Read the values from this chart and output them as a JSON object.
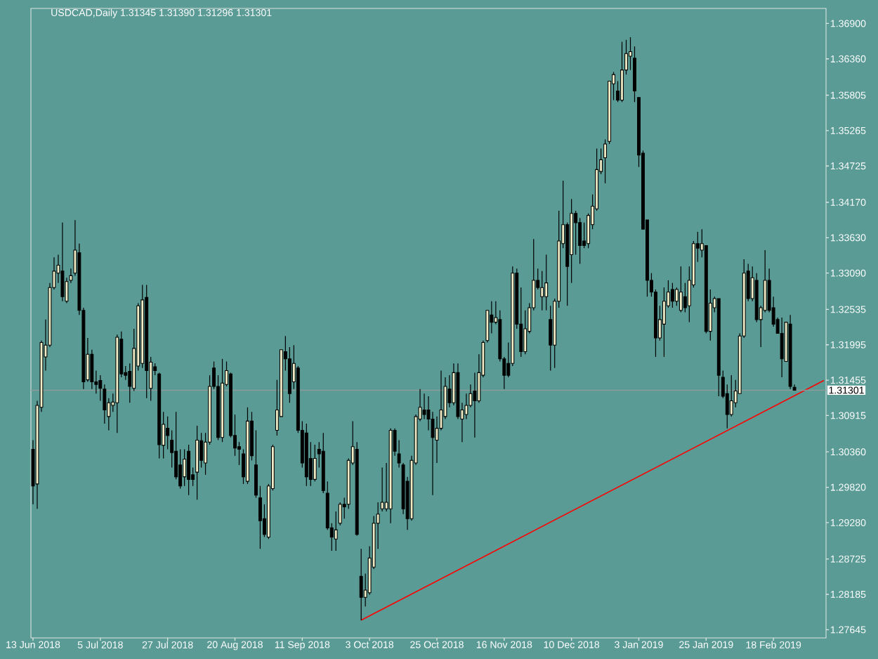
{
  "chart_data": {
    "type": "candlestick",
    "title": "USDCAD,Daily  1.31345 1.31390 1.31296 1.31301",
    "categories": [
      "13 Jun 2018",
      null,
      null,
      null,
      null,
      null,
      null,
      null,
      null,
      null,
      null,
      null,
      null,
      null,
      null,
      null,
      "5 Jul 2018",
      null,
      null,
      null,
      null,
      null,
      null,
      null,
      null,
      null,
      null,
      null,
      null,
      null,
      null,
      null,
      "27 Jul 2018",
      null,
      null,
      null,
      null,
      null,
      null,
      null,
      null,
      null,
      null,
      null,
      null,
      null,
      null,
      null,
      "20 Aug 2018",
      null,
      null,
      null,
      null,
      null,
      null,
      null,
      null,
      null,
      null,
      null,
      null,
      null,
      null,
      null,
      "11 Sep 2018",
      null,
      null,
      null,
      null,
      null,
      null,
      null,
      null,
      null,
      null,
      null,
      null,
      null,
      null,
      null,
      "3 Oct 2018",
      null,
      null,
      null,
      null,
      null,
      null,
      null,
      null,
      null,
      null,
      null,
      null,
      null,
      null,
      null,
      "25 Oct 2018",
      null,
      null,
      null,
      null,
      null,
      null,
      null,
      null,
      null,
      null,
      null,
      null,
      null,
      null,
      null,
      "16 Nov 2018",
      null,
      null,
      null,
      null,
      null,
      null,
      null,
      null,
      null,
      null,
      null,
      null,
      null,
      null,
      null,
      "10 Dec 2018",
      null,
      null,
      null,
      null,
      null,
      null,
      null,
      null,
      null,
      null,
      null,
      null,
      null,
      null,
      null,
      "3 Jan 2019",
      null,
      null,
      null,
      null,
      null,
      null,
      null,
      null,
      null,
      null,
      null,
      null,
      null,
      null,
      null,
      "25 Jan 2019",
      null,
      null,
      null,
      null,
      null,
      null,
      null,
      null,
      null,
      null,
      null,
      null,
      null,
      null,
      null,
      "18 Feb 2019",
      null,
      null,
      null,
      null,
      null,
      null,
      null,
      null,
      null,
      null,
      null,
      null
    ],
    "ohlc": [
      [
        1.304,
        1.3054,
        1.2956,
        1.2984
      ],
      [
        1.2987,
        1.3114,
        1.2949,
        1.3107
      ],
      [
        1.3104,
        1.3206,
        1.3097,
        1.3203
      ],
      [
        1.3181,
        1.3238,
        1.316,
        1.3199
      ],
      [
        1.3199,
        1.3294,
        1.3196,
        1.3287
      ],
      [
        1.3287,
        1.3333,
        1.3284,
        1.3312
      ],
      [
        1.3309,
        1.3337,
        1.3294,
        1.3321
      ],
      [
        1.3312,
        1.3386,
        1.3266,
        1.3273
      ],
      [
        1.3266,
        1.3302,
        1.3263,
        1.3296
      ],
      [
        1.3298,
        1.3316,
        1.3294,
        1.3305
      ],
      [
        1.3309,
        1.339,
        1.3305,
        1.3344
      ],
      [
        1.334,
        1.3354,
        1.3245,
        1.3252
      ],
      [
        1.3252,
        1.3256,
        1.3132,
        1.3143
      ],
      [
        1.3146,
        1.321,
        1.3143,
        1.3185
      ],
      [
        1.3185,
        1.3192,
        1.3132,
        1.3143
      ],
      [
        1.3143,
        1.316,
        1.3125,
        1.3139
      ],
      [
        1.3145,
        1.3153,
        1.3114,
        1.3133
      ],
      [
        1.3132,
        1.3139,
        1.3079,
        1.31
      ],
      [
        1.309,
        1.3118,
        1.3069,
        1.3111
      ],
      [
        1.3107,
        1.3125,
        1.3097,
        1.3112
      ],
      [
        1.3111,
        1.3215,
        1.3065,
        1.3211
      ],
      [
        1.3208,
        1.322,
        1.315,
        1.3155
      ],
      [
        1.3157,
        1.3167,
        1.3146,
        1.3153
      ],
      [
        1.3159,
        1.3171,
        1.3111,
        1.3136
      ],
      [
        1.3133,
        1.3224,
        1.3129,
        1.3194
      ],
      [
        1.3167,
        1.3263,
        1.316,
        1.3259
      ],
      [
        1.3171,
        1.3291,
        1.3164,
        1.3268
      ],
      [
        1.3272,
        1.3291,
        1.3118,
        1.316
      ],
      [
        1.3133,
        1.3181,
        1.3114,
        1.3173
      ],
      [
        1.3166,
        1.3171,
        1.3153,
        1.316
      ],
      [
        1.3155,
        1.3157,
        1.3026,
        1.3047
      ],
      [
        1.3046,
        1.3097,
        1.3026,
        1.3078
      ],
      [
        1.3072,
        1.309,
        1.304,
        1.3061
      ],
      [
        1.3054,
        1.3069,
        1.3012,
        1.3035
      ],
      [
        1.3037,
        1.3097,
        1.2994,
        1.2998
      ],
      [
        1.3016,
        1.304,
        1.298,
        1.2984
      ],
      [
        1.2998,
        1.304,
        1.2984,
        1.3025
      ],
      [
        1.3037,
        1.3047,
        1.297,
        1.2994
      ],
      [
        1.3001,
        1.3012,
        1.2984,
        1.2994
      ],
      [
        1.3005,
        1.3076,
        1.2963,
        1.3054
      ],
      [
        1.3053,
        1.3065,
        1.3012,
        1.3023
      ],
      [
        1.3019,
        1.3065,
        1.3001,
        1.3051
      ],
      [
        1.3051,
        1.3153,
        1.3047,
        1.3136
      ],
      [
        1.3164,
        1.3174,
        1.3132,
        1.3136
      ],
      [
        1.3136,
        1.3153,
        1.3054,
        1.3058
      ],
      [
        1.3058,
        1.3178,
        1.3051,
        1.3141
      ],
      [
        1.3139,
        1.3174,
        1.3136,
        1.316
      ],
      [
        1.3155,
        1.3157,
        1.3058,
        1.3061
      ],
      [
        1.3061,
        1.3093,
        1.303,
        1.3042
      ],
      [
        1.3044,
        1.3051,
        1.3016,
        1.304
      ],
      [
        1.3033,
        1.304,
        1.2987,
        1.2998
      ],
      [
        1.2991,
        1.3104,
        1.2987,
        1.3083
      ],
      [
        1.3083,
        1.3097,
        1.3023,
        1.303
      ],
      [
        1.3016,
        1.3069,
        1.2966,
        1.297
      ],
      [
        1.2966,
        1.2984,
        1.2888,
        1.2931
      ],
      [
        1.2934,
        1.2956,
        1.2906,
        1.291
      ],
      [
        1.2906,
        1.2987,
        1.2903,
        1.2984
      ],
      [
        1.298,
        1.3047,
        1.2977,
        1.3044
      ],
      [
        1.3069,
        1.3146,
        1.3061,
        1.31
      ],
      [
        1.309,
        1.3192,
        1.309,
        1.3192
      ],
      [
        1.3189,
        1.3213,
        1.316,
        1.3178
      ],
      [
        1.3178,
        1.3196,
        1.3111,
        1.3125
      ],
      [
        1.3143,
        1.3199,
        1.3132,
        1.3171
      ],
      [
        1.3164,
        1.3167,
        1.3065,
        1.3069
      ],
      [
        1.3069,
        1.3083,
        1.3012,
        1.3019
      ],
      [
        1.3065,
        1.3079,
        1.2984,
        1.2998
      ],
      [
        1.3026,
        1.3051,
        1.2984,
        1.2994
      ],
      [
        1.2994,
        1.3047,
        1.2991,
        1.3026
      ],
      [
        1.304,
        1.3051,
        1.3012,
        1.3033
      ],
      [
        1.3037,
        1.3065,
        1.2973,
        1.2977
      ],
      [
        1.2973,
        1.2991,
        1.2917,
        1.292
      ],
      [
        1.292,
        1.2927,
        1.2885,
        1.2906
      ],
      [
        1.2903,
        1.2945,
        1.2885,
        1.2917
      ],
      [
        1.2927,
        1.2959,
        1.2924,
        1.2956
      ],
      [
        1.2956,
        1.2966,
        1.2934,
        1.2952
      ],
      [
        1.2956,
        1.3026,
        1.2949,
        1.3023
      ],
      [
        1.3019,
        1.3083,
        1.3016,
        1.3044
      ],
      [
        1.304,
        1.3051,
        1.2908,
        1.291
      ],
      [
        1.2846,
        1.2888,
        1.2779,
        1.2814
      ],
      [
        1.2814,
        1.285,
        1.28,
        1.2825
      ],
      [
        1.2821,
        1.2892,
        1.2818,
        1.2874
      ],
      [
        1.286,
        1.2938,
        1.2857,
        1.2927
      ],
      [
        1.2927,
        1.2959,
        1.2888,
        1.2941
      ],
      [
        1.2949,
        1.3012,
        1.2945,
        1.2959
      ],
      [
        1.2949,
        1.3019,
        1.2945,
        1.2959
      ],
      [
        1.2949,
        1.3072,
        1.2927,
        1.3069
      ],
      [
        1.3069,
        1.3072,
        1.303,
        1.3037
      ],
      [
        1.3033,
        1.3054,
        1.3012,
        1.3019
      ],
      [
        1.3016,
        1.3019,
        1.2941,
        1.2949
      ],
      [
        1.2991,
        1.2998,
        1.2917,
        1.2934
      ],
      [
        1.2934,
        1.303,
        1.2931,
        1.3023
      ],
      [
        1.3019,
        1.3093,
        1.3016,
        1.309
      ],
      [
        1.3086,
        1.3132,
        1.3083,
        1.3104
      ],
      [
        1.31,
        1.3125,
        1.3086,
        1.3093
      ],
      [
        1.31,
        1.3121,
        1.3069,
        1.3086
      ],
      [
        1.3086,
        1.3097,
        1.297,
        1.3058
      ],
      [
        1.3054,
        1.309,
        1.3019,
        1.3072
      ],
      [
        1.3072,
        1.316,
        1.3069,
        1.31
      ],
      [
        1.309,
        1.315,
        1.3086,
        1.3136
      ],
      [
        1.3132,
        1.3153,
        1.3104,
        1.3111
      ],
      [
        1.3111,
        1.3171,
        1.3107,
        1.3157
      ],
      [
        1.3157,
        1.3171,
        1.3086,
        1.309
      ],
      [
        1.3086,
        1.3111,
        1.3051,
        1.31
      ],
      [
        1.3093,
        1.3125,
        1.3086,
        1.3107
      ],
      [
        1.3107,
        1.3139,
        1.3104,
        1.3125
      ],
      [
        1.3129,
        1.3157,
        1.3058,
        1.3114
      ],
      [
        1.3114,
        1.3185,
        1.3111,
        1.3157
      ],
      [
        1.3153,
        1.3206,
        1.315,
        1.3203
      ],
      [
        1.3206,
        1.3252,
        1.3203,
        1.3252
      ],
      [
        1.3245,
        1.3266,
        1.3217,
        1.3234
      ],
      [
        1.3234,
        1.3266,
        1.3231,
        1.3241
      ],
      [
        1.3238,
        1.3252,
        1.3174,
        1.3178
      ],
      [
        1.3178,
        1.3181,
        1.3132,
        1.3153
      ],
      [
        1.3171,
        1.3203,
        1.315,
        1.3153
      ],
      [
        1.3171,
        1.3319,
        1.3167,
        1.3309
      ],
      [
        1.3309,
        1.3316,
        1.3224,
        1.3231
      ],
      [
        1.3231,
        1.3287,
        1.3181,
        1.3189
      ],
      [
        1.3189,
        1.3252,
        1.3185,
        1.3224
      ],
      [
        1.322,
        1.3263,
        1.3217,
        1.3256
      ],
      [
        1.3256,
        1.3361,
        1.3252,
        1.3298
      ],
      [
        1.3298,
        1.3316,
        1.3284,
        1.3287
      ],
      [
        1.3273,
        1.3312,
        1.3252,
        1.3287
      ],
      [
        1.3273,
        1.3337,
        1.3252,
        1.3294
      ],
      [
        1.3238,
        1.3259,
        1.316,
        1.3199
      ],
      [
        1.3199,
        1.327,
        1.3164,
        1.3266
      ],
      [
        1.3266,
        1.3404,
        1.3256,
        1.3358
      ],
      [
        1.3354,
        1.345,
        1.3347,
        1.3383
      ],
      [
        1.3383,
        1.3386,
        1.3259,
        1.3319
      ],
      [
        1.3337,
        1.3422,
        1.3294,
        1.34
      ],
      [
        1.34,
        1.3404,
        1.3337,
        1.3386
      ],
      [
        1.3386,
        1.3393,
        1.3323,
        1.3351
      ],
      [
        1.3358,
        1.3386,
        1.3347,
        1.3351
      ],
      [
        1.3354,
        1.34,
        1.3347,
        1.3397
      ],
      [
        1.3383,
        1.3429,
        1.3376,
        1.3411
      ],
      [
        1.3407,
        1.3499,
        1.3404,
        1.3467
      ],
      [
        1.3464,
        1.3499,
        1.346,
        1.3482
      ],
      [
        1.3485,
        1.3513,
        1.3446,
        1.3506
      ],
      [
        1.351,
        1.3602,
        1.3506,
        1.3602
      ],
      [
        1.3598,
        1.3616,
        1.3573,
        1.3612
      ],
      [
        1.3587,
        1.3602,
        1.357,
        1.3573
      ],
      [
        1.3573,
        1.3662,
        1.357,
        1.3619
      ],
      [
        1.3619,
        1.3665,
        1.3612,
        1.3644
      ],
      [
        1.364,
        1.3669,
        1.3619,
        1.3647
      ],
      [
        1.3637,
        1.3655,
        1.357,
        1.3587
      ],
      [
        1.3577,
        1.3577,
        1.3471,
        1.3489
      ],
      [
        1.3492,
        1.3496,
        1.3376,
        1.3376
      ],
      [
        1.339,
        1.339,
        1.3273,
        1.3298
      ],
      [
        1.3298,
        1.3309,
        1.3273,
        1.328
      ],
      [
        1.328,
        1.3284,
        1.3181,
        1.321
      ],
      [
        1.321,
        1.3259,
        1.3206,
        1.3238
      ],
      [
        1.3231,
        1.3287,
        1.3181,
        1.3266
      ],
      [
        1.3259,
        1.3298,
        1.3256,
        1.328
      ],
      [
        1.3284,
        1.3294,
        1.3256,
        1.3266
      ],
      [
        1.3266,
        1.3287,
        1.3259,
        1.3284
      ],
      [
        1.3252,
        1.3319,
        1.3249,
        1.328
      ],
      [
        1.3273,
        1.3294,
        1.3249,
        1.3256
      ],
      [
        1.3259,
        1.3319,
        1.3234,
        1.3298
      ],
      [
        1.3291,
        1.3358,
        1.3287,
        1.3354
      ],
      [
        1.3354,
        1.3372,
        1.3326,
        1.3347
      ],
      [
        1.3344,
        1.3376,
        1.3333,
        1.3354
      ],
      [
        1.3351,
        1.3351,
        1.3217,
        1.322
      ],
      [
        1.322,
        1.3284,
        1.3206,
        1.3263
      ],
      [
        1.3256,
        1.3273,
        1.3249,
        1.327
      ],
      [
        1.327,
        1.327,
        1.3121,
        1.3153
      ],
      [
        1.315,
        1.316,
        1.3118,
        1.3121
      ],
      [
        1.3125,
        1.3139,
        1.3072,
        1.3093
      ],
      [
        1.3093,
        1.3153,
        1.309,
        1.3114
      ],
      [
        1.3111,
        1.3146,
        1.3104,
        1.3129
      ],
      [
        1.3125,
        1.3217,
        1.3125,
        1.3213
      ],
      [
        1.3213,
        1.333,
        1.321,
        1.3309
      ],
      [
        1.3312,
        1.3323,
        1.3266,
        1.327
      ],
      [
        1.327,
        1.3319,
        1.3266,
        1.3302
      ],
      [
        1.3298,
        1.3309,
        1.3234,
        1.3238
      ],
      [
        1.3238,
        1.3259,
        1.3196,
        1.3256
      ],
      [
        1.3252,
        1.3344,
        1.3249,
        1.3298
      ],
      [
        1.3298,
        1.3316,
        1.3249,
        1.3252
      ],
      [
        1.3256,
        1.3273,
        1.3227,
        1.3231
      ],
      [
        1.3238,
        1.3241,
        1.3217,
        1.3217
      ],
      [
        1.3217,
        1.3241,
        1.315,
        1.3178
      ],
      [
        1.3174,
        1.3234,
        1.3174,
        1.3234
      ],
      [
        1.3231,
        1.3245,
        1.3132,
        1.3136
      ],
      [
        1.31345,
        1.3139,
        1.31296,
        1.31301
      ],
      null,
      null,
      null,
      null,
      null,
      null,
      null
    ],
    "series": [
      {
        "type": "line",
        "color": "#ff0000",
        "values": [
          null,
          null,
          null,
          null,
          null,
          null,
          null,
          null,
          null,
          null,
          null,
          null,
          null,
          null,
          null,
          null,
          null,
          null,
          null,
          null,
          null,
          null,
          null,
          null,
          null,
          null,
          null,
          null,
          null,
          null,
          null,
          null,
          null,
          null,
          null,
          null,
          null,
          null,
          null,
          null,
          null,
          null,
          null,
          null,
          null,
          null,
          null,
          null,
          null,
          null,
          null,
          null,
          null,
          null,
          null,
          null,
          null,
          null,
          null,
          null,
          null,
          null,
          null,
          null,
          null,
          null,
          null,
          null,
          null,
          null,
          null,
          null,
          null,
          null,
          null,
          null,
          null,
          null,
          1.2779,
          null,
          null,
          null,
          null,
          null,
          null,
          null,
          null,
          null,
          null,
          null,
          null,
          null,
          null,
          null,
          null,
          null,
          null,
          null,
          null,
          null,
          null,
          null,
          null,
          null,
          null,
          null,
          null,
          null,
          null,
          null,
          null,
          null,
          null,
          null,
          null,
          null,
          null,
          null,
          null,
          null,
          null,
          null,
          null,
          null,
          null,
          null,
          null,
          null,
          null,
          null,
          null,
          null,
          null,
          null,
          null,
          null,
          null,
          null,
          null,
          null,
          null,
          null,
          null,
          null,
          null,
          null,
          null,
          null,
          null,
          null,
          null,
          null,
          null,
          null,
          null,
          null,
          null,
          null,
          null,
          null,
          null,
          null,
          null,
          null,
          null,
          null,
          null,
          null,
          null,
          null,
          null,
          null,
          null,
          null,
          null,
          null,
          null,
          null,
          null,
          null,
          null,
          null,
          null,
          null,
          null,
          null,
          null,
          null,
          1.3145
        ]
      }
    ],
    "ylim": [
      1.2752,
      1.3713
    ],
    "yticks": [
      {
        "value": 1.369,
        "label": "1.36900"
      },
      {
        "value": 1.3636,
        "label": "1.36360"
      },
      {
        "value": 1.35805,
        "label": "1.35805"
      },
      {
        "value": 1.35265,
        "label": "1.35265"
      },
      {
        "value": 1.34725,
        "label": "1.34725"
      },
      {
        "value": 1.3417,
        "label": "1.34170"
      },
      {
        "value": 1.3363,
        "label": "1.33630"
      },
      {
        "value": 1.3309,
        "label": "1.33090"
      },
      {
        "value": 1.32535,
        "label": "1.32535"
      },
      {
        "value": 1.31995,
        "label": "1.31995"
      },
      {
        "value": 1.31455,
        "label": "1.31455"
      },
      {
        "value": 1.30915,
        "label": "1.30915"
      },
      {
        "value": 1.3036,
        "label": "1.30360"
      },
      {
        "value": 1.2982,
        "label": "1.29820"
      },
      {
        "value": 1.2928,
        "label": "1.29280"
      },
      {
        "value": 1.28725,
        "label": "1.28725"
      },
      {
        "value": 1.28185,
        "label": "1.28185"
      },
      {
        "value": 1.27645,
        "label": "1.27645"
      }
    ],
    "ref_lines": [
      {
        "axis": "y",
        "value": 1.31301,
        "label": "1.31301",
        "color": "#8c9c9a"
      }
    ],
    "grid": false
  }
}
